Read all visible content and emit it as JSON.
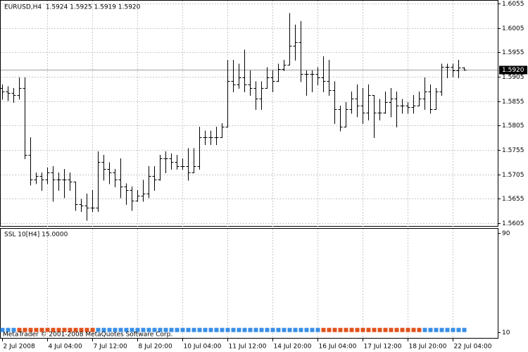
{
  "chart_data": [
    {
      "type": "ohlc",
      "title": "EURUSD,H4  1.5924 1.5925 1.5919 1.5920",
      "color": "#000000",
      "grid": true,
      "categories": [
        "2 Jul 2008",
        null,
        null,
        null,
        null,
        null,
        null,
        null,
        "4 Jul 04:00",
        null,
        null,
        null,
        null,
        null,
        null,
        null,
        "7 Jul 12:00",
        null,
        null,
        null,
        null,
        null,
        null,
        null,
        "8 Jul 20:00",
        null,
        null,
        null,
        null,
        null,
        null,
        null,
        "10 Jul 04:00",
        null,
        null,
        null,
        null,
        null,
        null,
        null,
        "11 Jul 12:00",
        null,
        null,
        null,
        null,
        null,
        null,
        null,
        "14 Jul 20:00",
        null,
        null,
        null,
        null,
        null,
        null,
        null,
        "16 Jul 04:00",
        null,
        null,
        null,
        null,
        null,
        null,
        null,
        "17 Jul 12:00",
        null,
        null,
        null,
        null,
        null,
        null,
        null,
        "18 Jul 20:00",
        null,
        null,
        null,
        null,
        null,
        null,
        null,
        "22 Jul 04:00",
        null,
        null
      ],
      "open": [
        1.5882,
        1.5875,
        1.5872,
        1.5868,
        1.5882,
        1.5745,
        1.5694,
        1.5702,
        1.5694,
        1.5709,
        1.5694,
        1.5694,
        1.5694,
        1.569,
        1.5644,
        1.5641,
        1.5637,
        1.5637,
        1.573,
        1.5716,
        1.5709,
        1.5694,
        1.568,
        1.5673,
        1.5651,
        1.5661,
        1.5666,
        1.5702,
        1.5694,
        1.5738,
        1.5738,
        1.573,
        1.5722,
        1.5722,
        1.5709,
        1.5722,
        1.5781,
        1.5781,
        1.5781,
        1.5781,
        1.5803,
        1.5896,
        1.5889,
        1.5904,
        1.5889,
        1.5882,
        1.586,
        1.5882,
        1.5904,
        1.5896,
        1.5921,
        1.593,
        1.5968,
        1.5976,
        1.5911,
        1.5911,
        1.5911,
        1.5904,
        1.5896,
        1.5878,
        1.5839,
        1.5803,
        1.5839,
        1.586,
        1.5846,
        1.5831,
        1.5868,
        1.5831,
        1.5831,
        1.5853,
        1.586,
        1.5846,
        1.5846,
        1.5843,
        1.5846,
        1.586,
        1.5875,
        1.5839,
        1.5875,
        1.5925,
        1.5925,
        1.5918,
        1.5924
      ],
      "high": [
        1.5889,
        1.5886,
        1.5882,
        1.5904,
        1.5904,
        1.5781,
        1.5709,
        1.5709,
        1.5719,
        1.5722,
        1.5709,
        1.5716,
        1.5709,
        1.569,
        1.5655,
        1.5666,
        1.5673,
        1.5752,
        1.5745,
        1.573,
        1.5716,
        1.5738,
        1.5687,
        1.568,
        1.5673,
        1.5694,
        1.5722,
        1.5722,
        1.5745,
        1.5752,
        1.5748,
        1.5745,
        1.5738,
        1.5759,
        1.5759,
        1.5803,
        1.5795,
        1.5795,
        1.5803,
        1.581,
        1.594,
        1.594,
        1.5932,
        1.5961,
        1.5918,
        1.5896,
        1.5896,
        1.5925,
        1.5918,
        1.5932,
        1.594,
        1.6036,
        1.6012,
        1.6019,
        1.5918,
        1.5918,
        1.5925,
        1.5947,
        1.594,
        1.5896,
        1.5846,
        1.5853,
        1.5875,
        1.5889,
        1.5882,
        1.5889,
        1.5868,
        1.586,
        1.5875,
        1.5882,
        1.5875,
        1.586,
        1.5853,
        1.5868,
        1.5875,
        1.5904,
        1.5889,
        1.5882,
        1.5932,
        1.5932,
        1.5932,
        1.594,
        1.5925
      ],
      "low": [
        1.586,
        1.5857,
        1.5853,
        1.586,
        1.5738,
        1.5684,
        1.5687,
        1.5673,
        1.5687,
        1.5651,
        1.5673,
        1.5658,
        1.5673,
        1.5632,
        1.563,
        1.5612,
        1.563,
        1.563,
        1.5694,
        1.5687,
        1.568,
        1.5658,
        1.5644,
        1.5632,
        1.5651,
        1.5651,
        1.5658,
        1.5673,
        1.5694,
        1.5709,
        1.5716,
        1.5716,
        1.5716,
        1.5694,
        1.5709,
        1.5716,
        1.5767,
        1.5767,
        1.5767,
        1.5781,
        1.5803,
        1.5875,
        1.5882,
        1.5875,
        1.5868,
        1.5839,
        1.5839,
        1.5882,
        1.5875,
        1.5896,
        1.5918,
        1.593,
        1.594,
        1.5896,
        1.5868,
        1.5875,
        1.5889,
        1.5875,
        1.5868,
        1.581,
        1.5795,
        1.5803,
        1.5831,
        1.5824,
        1.581,
        1.5817,
        1.5781,
        1.5817,
        1.5831,
        1.5824,
        1.5803,
        1.5831,
        1.5831,
        1.5831,
        1.5846,
        1.5839,
        1.5831,
        1.5839,
        1.5868,
        1.5904,
        1.5906,
        1.5904,
        1.5919
      ],
      "close": [
        1.5875,
        1.5872,
        1.5868,
        1.5882,
        1.5745,
        1.5694,
        1.5702,
        1.5694,
        1.5709,
        1.5694,
        1.5694,
        1.5694,
        1.569,
        1.5644,
        1.5641,
        1.5637,
        1.5637,
        1.573,
        1.5716,
        1.5709,
        1.5694,
        1.568,
        1.5673,
        1.5651,
        1.5661,
        1.5666,
        1.5702,
        1.5694,
        1.5738,
        1.5738,
        1.573,
        1.5722,
        1.5722,
        1.5709,
        1.5722,
        1.5781,
        1.5781,
        1.5781,
        1.5781,
        1.5803,
        1.5896,
        1.5889,
        1.5904,
        1.5889,
        1.5882,
        1.586,
        1.5882,
        1.5904,
        1.5896,
        1.5921,
        1.593,
        1.5968,
        1.5976,
        1.5911,
        1.5911,
        1.5911,
        1.5904,
        1.5896,
        1.5878,
        1.5839,
        1.5803,
        1.5839,
        1.586,
        1.5846,
        1.5831,
        1.5868,
        1.5831,
        1.5831,
        1.5853,
        1.586,
        1.5846,
        1.5846,
        1.5843,
        1.5846,
        1.586,
        1.5875,
        1.5839,
        1.5875,
        1.5925,
        1.5925,
        1.5918,
        1.5924,
        1.592
      ],
      "ylim": [
        1.5598,
        1.6061
      ],
      "yticks": [
        1.6055,
        1.6005,
        1.5955,
        1.5905,
        1.5855,
        1.5805,
        1.5755,
        1.5705,
        1.5655,
        1.5605
      ],
      "last_price": {
        "value": 1.592,
        "label": "1.5920"
      }
    },
    {
      "type": "dots",
      "title": "SSL 10[H4] 15.0000",
      "ylim": [
        5.6,
        93.3
      ],
      "yticks": [
        90,
        10
      ],
      "series": [
        {
          "color": "#3a8fe6",
          "values": [
            12,
            12,
            12,
            null,
            null,
            null,
            null,
            null,
            null,
            null,
            null,
            null,
            null,
            null,
            null,
            null,
            null,
            12,
            12,
            12,
            12,
            12,
            12,
            12,
            12,
            12,
            12,
            12,
            12,
            12,
            12,
            12,
            12,
            12,
            12,
            12,
            12,
            12,
            12,
            12,
            12,
            12,
            12,
            12,
            12,
            12,
            12,
            12,
            12,
            12,
            12,
            12,
            12,
            12,
            12,
            12,
            12,
            null,
            null,
            null,
            null,
            null,
            null,
            null,
            null,
            null,
            null,
            null,
            null,
            null,
            null,
            null,
            null,
            null,
            null,
            12,
            12,
            12,
            12,
            12,
            12,
            12,
            12
          ]
        },
        {
          "color": "#e0521c",
          "values": [
            null,
            null,
            null,
            12,
            12,
            12,
            12,
            12,
            12,
            12,
            12,
            12,
            12,
            12,
            12,
            12,
            12,
            null,
            null,
            null,
            null,
            null,
            null,
            null,
            null,
            null,
            null,
            null,
            null,
            null,
            null,
            null,
            null,
            null,
            null,
            null,
            null,
            null,
            null,
            null,
            null,
            null,
            null,
            null,
            null,
            null,
            null,
            null,
            null,
            null,
            null,
            null,
            null,
            null,
            null,
            null,
            null,
            12,
            12,
            12,
            12,
            12,
            12,
            12,
            12,
            12,
            12,
            12,
            12,
            12,
            12,
            12,
            12,
            12,
            12,
            null,
            null,
            null,
            null,
            null,
            null,
            null,
            null
          ]
        }
      ]
    }
  ],
  "footer": "MetaTrader © 2001-2008 MetaQuotes Software Corp."
}
